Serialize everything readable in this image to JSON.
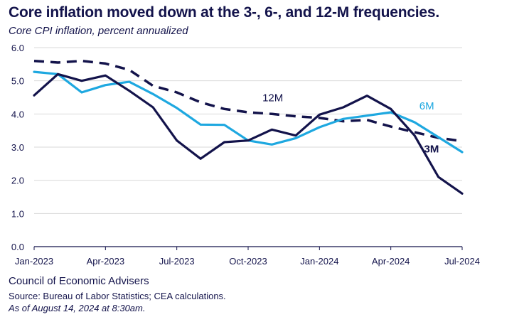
{
  "chart_data": {
    "type": "line",
    "title": "Core inflation moved down at the 3-, 6-, and 12-M frequencies.",
    "subtitle": "Core CPI inflation, percent annualized",
    "xlabel": "",
    "ylabel": "",
    "ylim": [
      0,
      6
    ],
    "yticks": [
      "0.0",
      "1.0",
      "2.0",
      "3.0",
      "4.0",
      "5.0",
      "6.0"
    ],
    "x": [
      "2023-01",
      "2023-02",
      "2023-03",
      "2023-04",
      "2023-05",
      "2023-06",
      "2023-07",
      "2023-08",
      "2023-09",
      "2023-10",
      "2023-11",
      "2023-12",
      "2024-01",
      "2024-02",
      "2024-03",
      "2024-04",
      "2024-05",
      "2024-06",
      "2024-07"
    ],
    "xticks": [
      "Jan-2023",
      "Apr-2023",
      "Jul-2023",
      "Oct-2023",
      "Jan-2024",
      "Apr-2024",
      "Jul-2024"
    ],
    "series": [
      {
        "name": "3M",
        "label": "3M",
        "color": "#13134b",
        "dash": "solid",
        "values": [
          4.56,
          5.2,
          5.0,
          5.16,
          4.7,
          4.2,
          3.2,
          2.65,
          3.15,
          3.2,
          3.53,
          3.35,
          3.98,
          4.2,
          4.55,
          4.15,
          3.35,
          2.1,
          1.6
        ]
      },
      {
        "name": "6M",
        "label": "6M",
        "color": "#1ea8e0",
        "dash": "solid",
        "values": [
          5.27,
          5.2,
          4.65,
          4.87,
          4.97,
          4.6,
          4.18,
          3.68,
          3.67,
          3.2,
          3.08,
          3.27,
          3.6,
          3.85,
          3.95,
          4.05,
          3.75,
          3.3,
          2.85
        ]
      },
      {
        "name": "12M",
        "label": "12M",
        "color": "#13134b",
        "dash": "dashed",
        "values": [
          5.6,
          5.55,
          5.6,
          5.52,
          5.33,
          4.85,
          4.65,
          4.35,
          4.15,
          4.05,
          4.0,
          3.93,
          3.88,
          3.78,
          3.82,
          3.62,
          3.45,
          3.28,
          3.18
        ]
      }
    ]
  },
  "footer": {
    "org": "Council of Economic Advisers",
    "source": "Source: Bureau of Labor Statistics; CEA calculations.",
    "as_of": "As of August 14, 2024 at 8:30am."
  }
}
